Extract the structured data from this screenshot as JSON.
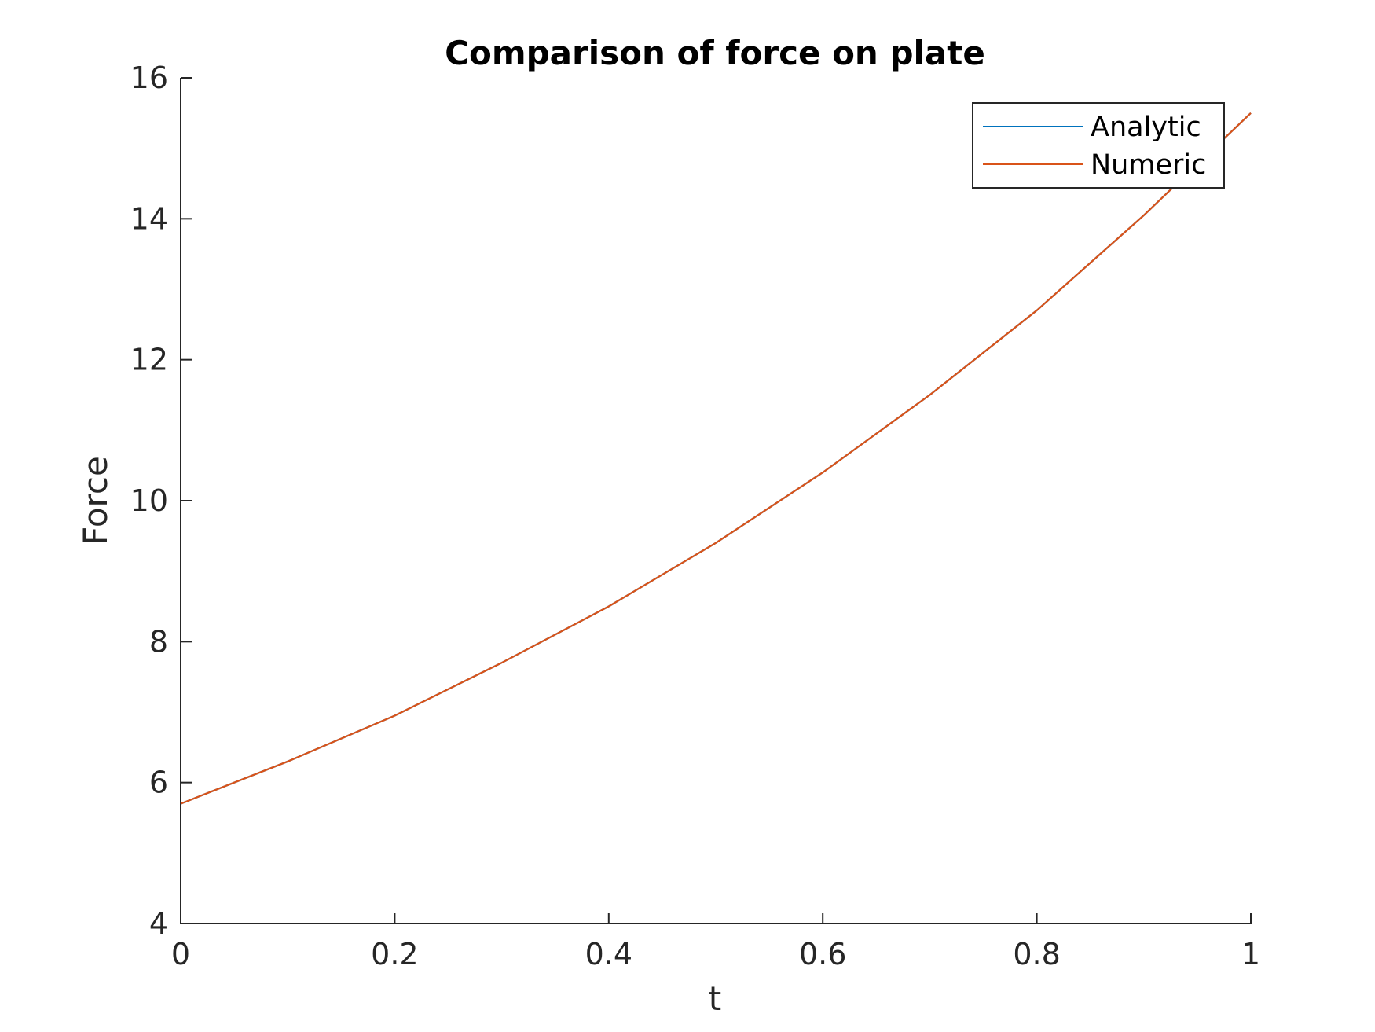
{
  "chart_data": {
    "type": "line",
    "title": "Comparison of force on plate",
    "xlabel": "t",
    "ylabel": "Force",
    "xlim": [
      0,
      1
    ],
    "ylim": [
      4,
      16
    ],
    "xticks": [
      0,
      0.2,
      0.4,
      0.6,
      0.8,
      1
    ],
    "xtick_labels": [
      "0",
      "0.2",
      "0.4",
      "0.6",
      "0.8",
      "1"
    ],
    "yticks": [
      4,
      6,
      8,
      10,
      12,
      14,
      16
    ],
    "ytick_labels": [
      "4",
      "6",
      "8",
      "10",
      "12",
      "14",
      "16"
    ],
    "grid": false,
    "legend_position": "top-right",
    "x": [
      0,
      0.1,
      0.2,
      0.3,
      0.4,
      0.5,
      0.6,
      0.7,
      0.8,
      0.9,
      1.0
    ],
    "series": [
      {
        "name": "Analytic",
        "color": "#0072BD",
        "values": [
          5.7,
          6.3,
          6.95,
          7.7,
          8.5,
          9.4,
          10.4,
          11.5,
          12.7,
          14.05,
          15.5
        ]
      },
      {
        "name": "Numeric",
        "color": "#D95319",
        "values": [
          5.7,
          6.3,
          6.95,
          7.7,
          8.5,
          9.4,
          10.4,
          11.5,
          12.7,
          14.05,
          15.5
        ]
      }
    ]
  }
}
